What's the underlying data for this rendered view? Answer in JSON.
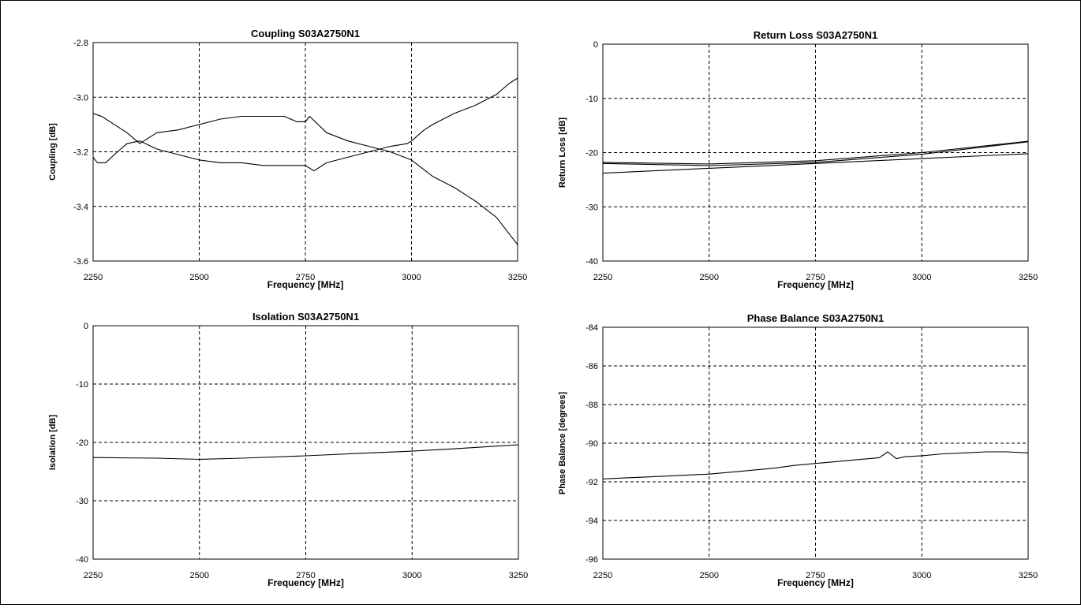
{
  "chart_data": [
    {
      "type": "line",
      "title": "Coupling S03A2750N1",
      "xlabel": "Frequency [MHz]",
      "ylabel": "Coupling [dB]",
      "xlim": [
        2250,
        3250
      ],
      "ylim": [
        -3.6,
        -2.8
      ],
      "xticks": [
        "2250",
        "2500",
        "2750",
        "3000",
        "3250"
      ],
      "yticks": [
        "-2.8",
        "-3.0",
        "-3.2",
        "-3.4",
        "-3.6"
      ],
      "grid": true,
      "series": [
        {
          "x": [
            2250,
            2270,
            2300,
            2330,
            2360,
            2380,
            2400,
            2450,
            2500,
            2550,
            2600,
            2650,
            2700,
            2730,
            2750,
            2760,
            2780,
            2800,
            2850,
            2900,
            2950,
            3000,
            3050,
            3100,
            3150,
            3200,
            3230,
            3250
          ],
          "y": [
            -3.06,
            -3.07,
            -3.1,
            -3.13,
            -3.17,
            -3.15,
            -3.13,
            -3.12,
            -3.1,
            -3.08,
            -3.07,
            -3.07,
            -3.07,
            -3.09,
            -3.09,
            -3.07,
            -3.1,
            -3.13,
            -3.16,
            -3.18,
            -3.2,
            -3.23,
            -3.29,
            -3.33,
            -3.38,
            -3.44,
            -3.5,
            -3.54
          ]
        },
        {
          "x": [
            2250,
            2260,
            2280,
            2300,
            2330,
            2360,
            2400,
            2450,
            2500,
            2550,
            2600,
            2650,
            2700,
            2750,
            2770,
            2800,
            2850,
            2900,
            2950,
            2990,
            3000,
            3030,
            3050,
            3100,
            3150,
            3200,
            3230,
            3250
          ],
          "y": [
            -3.22,
            -3.24,
            -3.24,
            -3.21,
            -3.17,
            -3.16,
            -3.19,
            -3.21,
            -3.23,
            -3.24,
            -3.24,
            -3.25,
            -3.25,
            -3.25,
            -3.27,
            -3.24,
            -3.22,
            -3.2,
            -3.18,
            -3.17,
            -3.16,
            -3.12,
            -3.1,
            -3.06,
            -3.03,
            -2.99,
            -2.95,
            -2.93
          ]
        }
      ]
    },
    {
      "type": "line",
      "title": "Return Loss S03A2750N1",
      "xlabel": "Frequency [MHz]",
      "ylabel": "Return Loss [dB]",
      "xlim": [
        2250,
        3250
      ],
      "ylim": [
        -40,
        0
      ],
      "xticks": [
        "2250",
        "2500",
        "2750",
        "3000",
        "3250"
      ],
      "yticks": [
        "0",
        "-10",
        "-20",
        "-30",
        "-40"
      ],
      "grid": true,
      "series": [
        {
          "x": [
            2250,
            2500,
            2750,
            3000,
            3250
          ],
          "y": [
            -21.8,
            -22.1,
            -21.5,
            -20.0,
            -17.9
          ]
        },
        {
          "x": [
            2250,
            2500,
            2750,
            3000,
            3250
          ],
          "y": [
            -22.0,
            -22.4,
            -21.8,
            -20.3,
            -18.0
          ]
        },
        {
          "x": [
            2250,
            2500,
            2750,
            3000,
            3250
          ],
          "y": [
            -23.8,
            -22.9,
            -22.0,
            -21.1,
            -20.2
          ]
        }
      ]
    },
    {
      "type": "line",
      "title": "Isolation S03A2750N1",
      "xlabel": "Frequency [MHz]",
      "ylabel": "Isolation [dB]",
      "xlim": [
        2250,
        3250
      ],
      "ylim": [
        -40,
        0
      ],
      "xticks": [
        "2250",
        "2500",
        "2750",
        "3000",
        "3250"
      ],
      "yticks": [
        "0",
        "-10",
        "-20",
        "-30",
        "-40"
      ],
      "grid": true,
      "series": [
        {
          "x": [
            2250,
            2400,
            2500,
            2600,
            2750,
            2900,
            3000,
            3100,
            3250
          ],
          "y": [
            -22.6,
            -22.7,
            -22.9,
            -22.7,
            -22.3,
            -21.8,
            -21.5,
            -21.1,
            -20.4
          ]
        }
      ]
    },
    {
      "type": "line",
      "title": "Phase Balance S03A2750N1",
      "xlabel": "Frequency [MHz]",
      "ylabel": "Phase Balance [degrees]",
      "xlim": [
        2250,
        3250
      ],
      "ylim": [
        -96,
        -84
      ],
      "xticks": [
        "2250",
        "2500",
        "2750",
        "3000",
        "3250"
      ],
      "yticks": [
        "-84",
        "-86",
        "-88",
        "-90",
        "-92",
        "-94",
        "-96"
      ],
      "grid": true,
      "series": [
        {
          "x": [
            2250,
            2300,
            2350,
            2400,
            2450,
            2500,
            2550,
            2600,
            2650,
            2700,
            2750,
            2800,
            2850,
            2900,
            2920,
            2940,
            2960,
            3000,
            3050,
            3100,
            3150,
            3200,
            3250
          ],
          "y": [
            -91.85,
            -91.8,
            -91.75,
            -91.7,
            -91.65,
            -91.6,
            -91.5,
            -91.4,
            -91.3,
            -91.15,
            -91.05,
            -90.95,
            -90.85,
            -90.75,
            -90.45,
            -90.8,
            -90.7,
            -90.65,
            -90.55,
            -90.5,
            -90.45,
            -90.45,
            -90.5
          ]
        }
      ]
    }
  ]
}
